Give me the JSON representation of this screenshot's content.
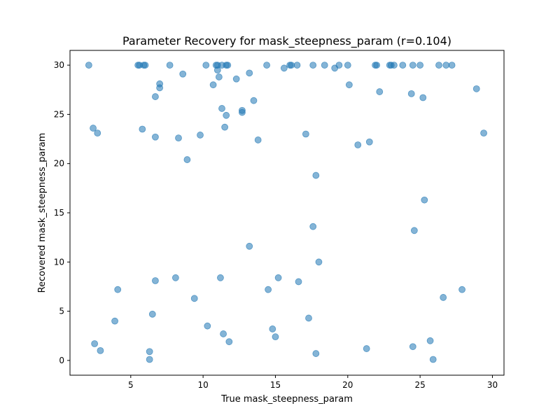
{
  "chart_data": {
    "type": "scatter",
    "title": "Parameter Recovery for mask_steepness_param (r=0.104)",
    "xlabel": "True mask_steepness_param",
    "ylabel": "Recovered mask_steepness_param",
    "xlim": [
      0.8,
      30.8
    ],
    "ylim": [
      -1.5,
      31.5
    ],
    "xticks": [
      5,
      10,
      15,
      20,
      25,
      30
    ],
    "yticks": [
      0,
      5,
      10,
      15,
      20,
      25,
      30
    ],
    "grid": false,
    "point_color": "#1f77b4",
    "point_alpha": 0.55,
    "series": [
      {
        "x": [
          2.1,
          5.5,
          5.6,
          5.9,
          6.0,
          7.7,
          10.2,
          10.9,
          11.0,
          11.3,
          11.6,
          11.7,
          14.4,
          16.0,
          16.1,
          16.5,
          17.6,
          18.4,
          19.4,
          20.0,
          21.9,
          22.0,
          22.9,
          23.0,
          23.2,
          23.8,
          24.5,
          25.0,
          26.3,
          26.8,
          27.2,
          8.6,
          11.0,
          13.2,
          15.6,
          19.1,
          10.7,
          7.0,
          20.1,
          7.0,
          12.3,
          11.1,
          22.2,
          24.4,
          6.7,
          25.2,
          13.5,
          28.9,
          11.3,
          12.7,
          12.7,
          11.6,
          2.4,
          5.8,
          11.5,
          2.7,
          6.7,
          17.1,
          29.4,
          8.3,
          9.8,
          13.8,
          21.5,
          20.7,
          8.9,
          17.8,
          25.3,
          17.6,
          24.6,
          13.2,
          18.0,
          4.1,
          6.7,
          8.1,
          11.2,
          15.2,
          16.6,
          14.5,
          27.9,
          9.4,
          26.6,
          6.5,
          17.3,
          3.9,
          10.3,
          14.8,
          11.4,
          15.0,
          25.7,
          11.8,
          2.5,
          24.5,
          21.3,
          2.9,
          6.3,
          17.8,
          6.3,
          25.9
        ],
        "y": [
          30.0,
          30.0,
          30.0,
          30.0,
          30.0,
          30.0,
          30.0,
          30.0,
          30.0,
          30.0,
          30.0,
          30.0,
          30.0,
          30.0,
          30.0,
          30.0,
          30.0,
          30.0,
          30.0,
          30.0,
          30.0,
          30.0,
          30.0,
          30.0,
          30.0,
          30.0,
          30.0,
          30.0,
          30.0,
          30.0,
          30.0,
          29.1,
          29.5,
          29.2,
          29.7,
          29.7,
          28.0,
          28.1,
          28.0,
          27.7,
          28.6,
          28.8,
          27.3,
          27.1,
          26.8,
          26.7,
          26.4,
          27.6,
          25.6,
          25.4,
          25.2,
          24.9,
          23.6,
          23.5,
          23.7,
          23.1,
          22.7,
          23.0,
          23.1,
          22.6,
          22.9,
          22.4,
          22.2,
          21.9,
          20.4,
          18.8,
          16.3,
          13.6,
          13.2,
          11.6,
          10.0,
          7.2,
          8.1,
          8.4,
          8.4,
          8.4,
          8.0,
          7.2,
          7.2,
          6.3,
          6.4,
          4.7,
          4.3,
          4.0,
          3.5,
          3.2,
          2.7,
          2.4,
          2.0,
          1.9,
          1.7,
          1.4,
          1.2,
          1.0,
          0.9,
          0.7,
          0.1,
          0.1
        ]
      }
    ]
  }
}
